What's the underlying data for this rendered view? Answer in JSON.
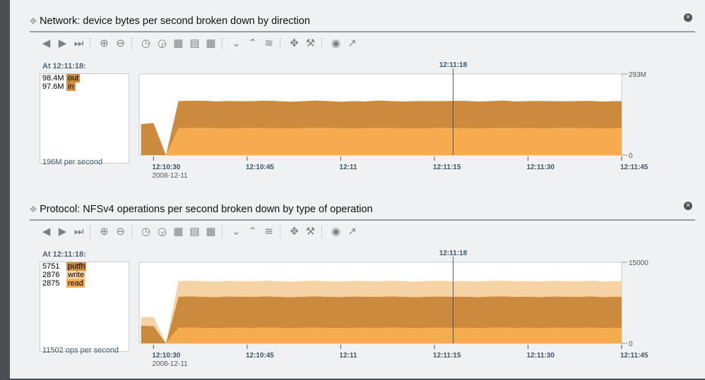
{
  "colors": {
    "dark": "#cc8a3c",
    "light": "#f5ab4e",
    "pale": "#f6d3a5",
    "cursor": "#4b5966"
  },
  "toolbar_icons": [
    "arrow-left-icon",
    "arrow-right-icon",
    "skip-end-icon",
    "|",
    "zoom-in-icon",
    "zoom-out-icon",
    "|",
    "clock-back-icon",
    "clock-forward-icon",
    "table-icon",
    "table-alt-icon",
    "table-grid-icon",
    "|",
    "line-low-icon",
    "line-peak-icon",
    "line-stack-icon",
    "|",
    "expand-icon",
    "drill-icon",
    "|",
    "palette-icon",
    "popout-icon"
  ],
  "panels": [
    {
      "title": "Network: device bytes per second broken down by direction",
      "at": "At 12:11:18:",
      "total": "196M per second",
      "legend": [
        {
          "value": "98.4M",
          "name": "out",
          "color": "#cc8a3c"
        },
        {
          "value": "97.6M",
          "name": "in",
          "color": "#d9903f"
        }
      ]
    },
    {
      "title": "Protocol: NFSv4 operations per second broken down by type of operation",
      "at": "At 12:11:18:",
      "total": "11502 ops per second",
      "legend": [
        {
          "value": "5751",
          "name": "putfh",
          "color": "#cc8a3c"
        },
        {
          "value": "2876",
          "name": "write",
          "color": "#f6d3a5"
        },
        {
          "value": "2875",
          "name": "read",
          "color": "#f5ab4e"
        }
      ]
    }
  ],
  "chart_data": [
    {
      "type": "area",
      "stacked": true,
      "cursor_label": "12:11:18",
      "cursor_time": "12:11:18",
      "xlim": [
        "12:10:28",
        "12:11:45"
      ],
      "ylim": [
        0,
        293000000
      ],
      "y_ticks": [
        "293M",
        "0"
      ],
      "x_ticks": [
        "12:10:30",
        "12:10:45",
        "12:11",
        "12:11:15",
        "12:11:30",
        "12:11:45"
      ],
      "x_date": "2008-12-11",
      "x": [
        "12:10:28",
        "12:10:30",
        "12:10:32",
        "12:10:34",
        "12:10:36",
        "12:10:38",
        "12:10:40",
        "12:10:42",
        "12:10:44",
        "12:10:46",
        "12:10:48",
        "12:10:50",
        "12:10:52",
        "12:10:54",
        "12:10:56",
        "12:10:58",
        "12:11:00",
        "12:11:02",
        "12:11:04",
        "12:11:06",
        "12:11:08",
        "12:11:10",
        "12:11:12",
        "12:11:14",
        "12:11:16",
        "12:11:18",
        "12:11:20",
        "12:11:22",
        "12:11:24",
        "12:11:26",
        "12:11:28",
        "12:11:30",
        "12:11:32",
        "12:11:34",
        "12:11:36",
        "12:11:38",
        "12:11:40",
        "12:11:42",
        "12:11:44",
        "12:11:45"
      ],
      "series": [
        {
          "name": "in",
          "color": "#f5ab4e",
          "values": [
            0,
            0,
            0,
            97000000,
            97500000,
            98000000,
            97000000,
            96500000,
            97000000,
            98000000,
            97200000,
            97000000,
            96500000,
            97000000,
            98000000,
            97300000,
            97000000,
            96400000,
            97000000,
            98000000,
            97100000,
            97000000,
            96300000,
            97000000,
            97800000,
            97600000,
            97000000,
            96500000,
            97200000,
            98000000,
            97000000,
            97300000,
            96600000,
            97000000,
            98000000,
            97200000,
            97000000,
            96500000,
            97100000,
            97800000
          ]
        },
        {
          "name": "out",
          "color": "#cc8a3c",
          "values": [
            112000000,
            116000000,
            0,
            98000000,
            99000000,
            98500000,
            97000000,
            99000000,
            98000000,
            97000000,
            99500000,
            98000000,
            96500000,
            98000000,
            99000000,
            98000000,
            96000000,
            98500000,
            97000000,
            99000000,
            98000000,
            96800000,
            99000000,
            98200000,
            97000000,
            98400000,
            99000000,
            97000000,
            98000000,
            99200000,
            97000000,
            98000000,
            99000000,
            98000000,
            96500000,
            98000000,
            99000000,
            97200000,
            98000000,
            97000000
          ]
        }
      ]
    },
    {
      "type": "area",
      "stacked": true,
      "cursor_label": "12:11:18",
      "cursor_time": "12:11:18",
      "xlim": [
        "12:10:28",
        "12:11:45"
      ],
      "ylim": [
        0,
        15000
      ],
      "y_ticks": [
        "15000",
        "0"
      ],
      "x_ticks": [
        "12:10:30",
        "12:10:45",
        "12:11",
        "12:11:15",
        "12:11:30",
        "12:11:45"
      ],
      "x_date": "2008-12-11",
      "x": [
        "12:10:28",
        "12:10:30",
        "12:10:32",
        "12:10:34",
        "12:10:36",
        "12:10:38",
        "12:10:40",
        "12:10:42",
        "12:10:44",
        "12:10:46",
        "12:10:48",
        "12:10:50",
        "12:10:52",
        "12:10:54",
        "12:10:56",
        "12:10:58",
        "12:11:00",
        "12:11:02",
        "12:11:04",
        "12:11:06",
        "12:11:08",
        "12:11:10",
        "12:11:12",
        "12:11:14",
        "12:11:16",
        "12:11:18",
        "12:11:20",
        "12:11:22",
        "12:11:24",
        "12:11:26",
        "12:11:28",
        "12:11:30",
        "12:11:32",
        "12:11:34",
        "12:11:36",
        "12:11:38",
        "12:11:40",
        "12:11:42",
        "12:11:44",
        "12:11:45"
      ],
      "series": [
        {
          "name": "read",
          "color": "#f5ab4e",
          "values": [
            0,
            0,
            0,
            2880,
            2900,
            2870,
            2860,
            2890,
            2880,
            2870,
            2900,
            2880,
            2850,
            2880,
            2900,
            2870,
            2860,
            2890,
            2880,
            2870,
            2900,
            2880,
            2850,
            2880,
            2890,
            2875,
            2880,
            2860,
            2890,
            2900,
            2870,
            2880,
            2860,
            2890,
            2880,
            2870,
            2900,
            2860,
            2880,
            2870
          ]
        },
        {
          "name": "putfh",
          "color": "#cc8a3c",
          "values": [
            3300,
            3200,
            0,
            5750,
            5800,
            5740,
            5700,
            5780,
            5760,
            5720,
            5800,
            5750,
            5690,
            5760,
            5800,
            5740,
            5710,
            5780,
            5760,
            5720,
            5800,
            5750,
            5690,
            5760,
            5780,
            5751,
            5760,
            5700,
            5780,
            5800,
            5740,
            5760,
            5700,
            5780,
            5760,
            5720,
            5800,
            5700,
            5760,
            5740
          ]
        },
        {
          "name": "write",
          "color": "#f6d3a5",
          "values": [
            1500,
            1700,
            0,
            2880,
            2900,
            2870,
            2860,
            2890,
            2880,
            2870,
            2900,
            2880,
            2850,
            2880,
            2900,
            2870,
            2860,
            2890,
            2880,
            2870,
            2900,
            2880,
            2850,
            2880,
            2890,
            2876,
            2880,
            2860,
            2890,
            2900,
            2870,
            2880,
            2860,
            2890,
            2880,
            2870,
            2900,
            2860,
            2880,
            2870
          ]
        }
      ]
    }
  ]
}
